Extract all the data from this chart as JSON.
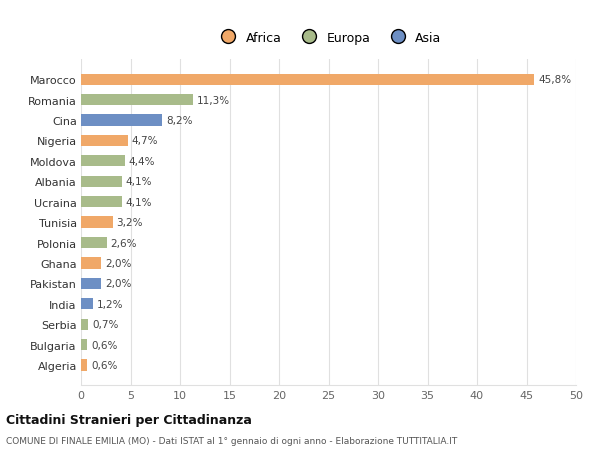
{
  "countries": [
    "Algeria",
    "Bulgaria",
    "Serbia",
    "India",
    "Pakistan",
    "Ghana",
    "Polonia",
    "Tunisia",
    "Ucraina",
    "Albania",
    "Moldova",
    "Nigeria",
    "Cina",
    "Romania",
    "Marocco"
  ],
  "values": [
    0.6,
    0.6,
    0.7,
    1.2,
    2.0,
    2.0,
    2.6,
    3.2,
    4.1,
    4.1,
    4.4,
    4.7,
    8.2,
    11.3,
    45.8
  ],
  "labels": [
    "0,6%",
    "0,6%",
    "0,7%",
    "1,2%",
    "2,0%",
    "2,0%",
    "2,6%",
    "3,2%",
    "4,1%",
    "4,1%",
    "4,4%",
    "4,7%",
    "8,2%",
    "11,3%",
    "45,8%"
  ],
  "colors": [
    "#f0a868",
    "#a8bb8a",
    "#a8bb8a",
    "#6d8fc4",
    "#6d8fc4",
    "#f0a868",
    "#a8bb8a",
    "#f0a868",
    "#a8bb8a",
    "#a8bb8a",
    "#a8bb8a",
    "#f0a868",
    "#6d8fc4",
    "#a8bb8a",
    "#f0a868"
  ],
  "legend": [
    {
      "label": "Africa",
      "color": "#f0a868"
    },
    {
      "label": "Europa",
      "color": "#a8bb8a"
    },
    {
      "label": "Asia",
      "color": "#6d8fc4"
    }
  ],
  "xlim": [
    0,
    50
  ],
  "xticks": [
    0,
    5,
    10,
    15,
    20,
    25,
    30,
    35,
    40,
    45,
    50
  ],
  "title": "Cittadini Stranieri per Cittadinanza",
  "subtitle": "COMUNE DI FINALE EMILIA (MO) - Dati ISTAT al 1° gennaio di ogni anno - Elaborazione TUTTITALIA.IT",
  "bg_color": "#ffffff",
  "grid_color": "#e0e0e0",
  "bar_height": 0.55
}
